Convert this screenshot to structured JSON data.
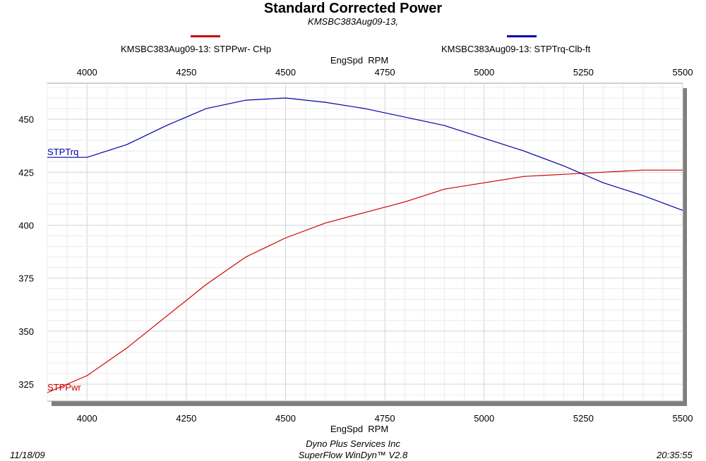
{
  "header": {
    "title": "Standard Corrected Power",
    "subtitle": "KMSBC383Aug09-13,"
  },
  "legend": [
    {
      "label": "KMSBC383Aug09-13: STPPwr- CHp",
      "color": "#cc0000"
    },
    {
      "label": "KMSBC383Aug09-13: STPTrq-Clb-ft",
      "color": "#0000aa"
    }
  ],
  "footer": {
    "date": "11/18/09",
    "company": "Dyno Plus Services Inc",
    "software": "SuperFlow WinDyn™ V2.8",
    "time": "20:35:55"
  },
  "chart_data": {
    "type": "line",
    "xlabel": "EngSpd  RPM",
    "ylabel": "",
    "xlim": [
      3900,
      5500
    ],
    "ylim": [
      317,
      467
    ],
    "xticks": [
      4000,
      4250,
      4500,
      4750,
      5000,
      5250,
      5500
    ],
    "yticks": [
      325,
      350,
      375,
      400,
      425,
      450
    ],
    "grid": true,
    "series": [
      {
        "name": "STPPwr",
        "color": "#cc0000",
        "x": [
          3900,
          4000,
          4100,
          4200,
          4300,
          4400,
          4500,
          4600,
          4700,
          4800,
          4900,
          5000,
          5100,
          5200,
          5300,
          5400,
          5500
        ],
        "values": [
          321,
          329,
          342,
          357,
          372,
          385,
          394,
          401,
          406,
          411,
          417,
          420,
          423,
          424,
          425,
          426,
          426
        ]
      },
      {
        "name": "STPTrq",
        "color": "#0000aa",
        "x": [
          3900,
          4000,
          4100,
          4200,
          4300,
          4400,
          4500,
          4600,
          4700,
          4800,
          4900,
          5000,
          5100,
          5200,
          5300,
          5400,
          5500
        ],
        "values": [
          432,
          432,
          438,
          447,
          455,
          459,
          460,
          458,
          455,
          451,
          447,
          441,
          435,
          428,
          420,
          414,
          407
        ]
      }
    ]
  }
}
